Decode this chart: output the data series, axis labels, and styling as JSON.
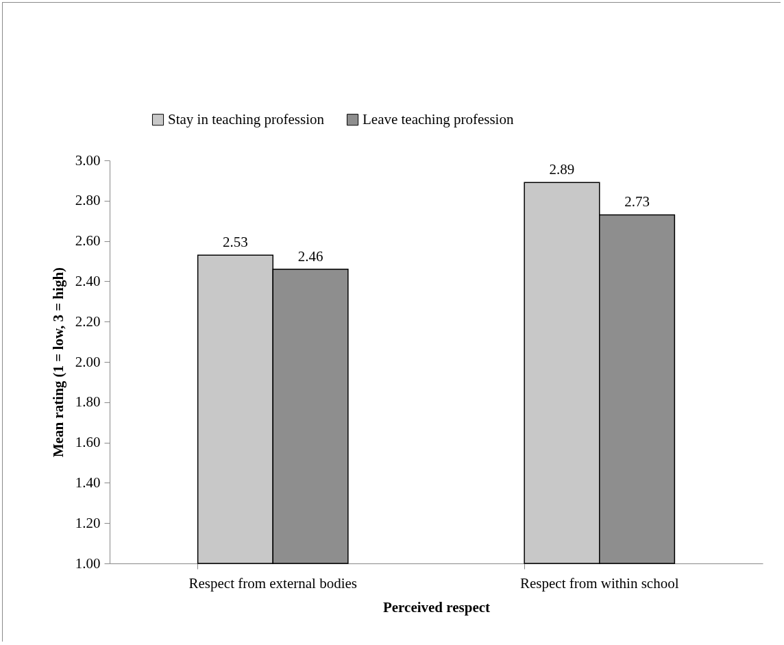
{
  "chart_data": {
    "type": "bar",
    "xlabel": "Perceived respect",
    "ylabel": "Mean rating (1 = low, 3 = high)",
    "categories": [
      "Respect from external bodies",
      "Respect from within school"
    ],
    "series": [
      {
        "name": "Stay in teaching profession",
        "color": "#c8c8c8",
        "values": [
          2.53,
          2.89
        ]
      },
      {
        "name": "Leave teaching profession",
        "color": "#8e8e8e",
        "values": [
          2.46,
          2.73
        ]
      }
    ],
    "ylim": [
      1,
      3
    ],
    "yticks": [
      {
        "value": 1,
        "label": "1.00"
      },
      {
        "value": 1.2,
        "label": "1.20"
      },
      {
        "value": 1.4,
        "label": "1.40"
      },
      {
        "value": 1.6,
        "label": "1.60"
      },
      {
        "value": 1.8,
        "label": "1.80"
      },
      {
        "value": 2,
        "label": "2.00"
      },
      {
        "value": 2.2,
        "label": "2.20"
      },
      {
        "value": 2.4,
        "label": "2.40"
      },
      {
        "value": 2.6,
        "label": "2.60"
      },
      {
        "value": 2.8,
        "label": "2.80"
      },
      {
        "value": 3,
        "label": "3.00"
      }
    ],
    "data_labels": true,
    "grid": false,
    "legend": "top"
  }
}
